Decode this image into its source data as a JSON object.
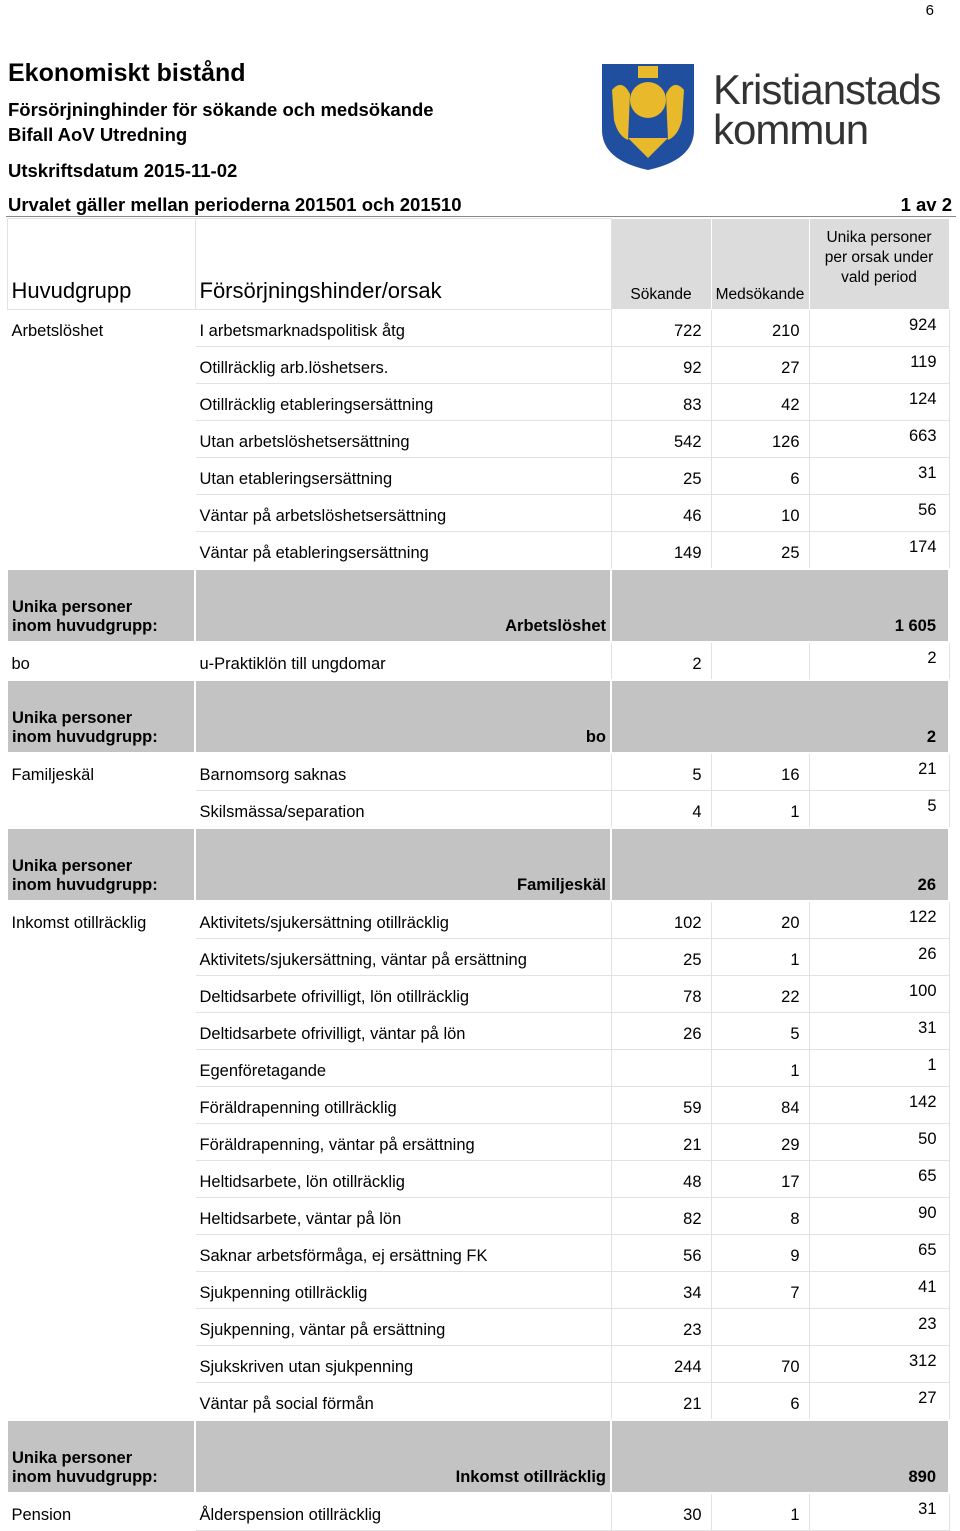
{
  "page_number": "6",
  "header": {
    "title": "Ekonomiskt bistånd",
    "subtitle": "Försörjninghinder för sökande och medsökande",
    "subtitle2": "Bifall AoV Utredning",
    "print_date": "Utskriftsdatum 2015-11-02",
    "selection": "Urvalet gäller mellan perioderna 201501 och 201510",
    "page": "1 av 2"
  },
  "logo": {
    "line1": "Kristianstads",
    "line2": "kommun"
  },
  "table": {
    "columns": [
      "Huvudgrupp",
      "Försörjningshinder/orsak",
      "Sökande",
      "Medsökande",
      "Unika personer per orsak under vald period"
    ],
    "summary_label": [
      "Unika personer",
      "inom huvudgrupp:"
    ],
    "groups": [
      {
        "name": "Arbetslöshet",
        "total": "1 605",
        "rows": [
          [
            "I arbetsmarknadspolitisk åtg",
            722,
            210,
            924
          ],
          [
            "Otillräcklig arb.löshetsers.",
            92,
            27,
            119
          ],
          [
            "Otillräcklig etableringsersättning",
            83,
            42,
            124
          ],
          [
            "Utan arbetslöshetsersättning",
            542,
            126,
            663
          ],
          [
            "Utan etableringsersättning",
            25,
            6,
            31
          ],
          [
            "Väntar på arbetslöshetsersättning",
            46,
            10,
            56
          ],
          [
            "Väntar på etableringsersättning",
            149,
            25,
            174
          ]
        ]
      },
      {
        "name": "bo",
        "total": 2,
        "rows": [
          [
            "u-Praktiklön till ungdomar",
            2,
            null,
            2
          ]
        ]
      },
      {
        "name": "Familjeskäl",
        "total": 26,
        "rows": [
          [
            "Barnomsorg saknas",
            5,
            16,
            21
          ],
          [
            "Skilsmässa/separation",
            4,
            1,
            5
          ]
        ]
      },
      {
        "name": "Inkomst otillräcklig",
        "total": 890,
        "rows": [
          [
            "Aktivitets/sjukersättning otillräcklig",
            102,
            20,
            122
          ],
          [
            "Aktivitets/sjukersättning, väntar på ersättning",
            25,
            1,
            26
          ],
          [
            "Deltidsarbete ofrivilligt, lön otillräcklig",
            78,
            22,
            100
          ],
          [
            "Deltidsarbete ofrivilligt, väntar på lön",
            26,
            5,
            31
          ],
          [
            "Egenföretagande",
            null,
            1,
            1
          ],
          [
            "Föräldrapenning otillräcklig",
            59,
            84,
            142
          ],
          [
            "Föräldrapenning, väntar på ersättning",
            21,
            29,
            50
          ],
          [
            "Heltidsarbete, lön otillräcklig",
            48,
            17,
            65
          ],
          [
            "Heltidsarbete, väntar på lön",
            82,
            8,
            90
          ],
          [
            "Saknar arbetsförmåga, ej ersättning FK",
            56,
            9,
            65
          ],
          [
            "Sjukpenning otillräcklig",
            34,
            7,
            41
          ],
          [
            "Sjukpenning, väntar på ersättning",
            23,
            null,
            23
          ],
          [
            "Sjukskriven utan sjukpenning",
            244,
            70,
            312
          ],
          [
            "Väntar på social förmån",
            21,
            6,
            27
          ]
        ]
      },
      {
        "name": "Pension",
        "total": null,
        "rows": [
          [
            "Ålderspension otillräcklig",
            30,
            1,
            31
          ]
        ]
      }
    ]
  }
}
